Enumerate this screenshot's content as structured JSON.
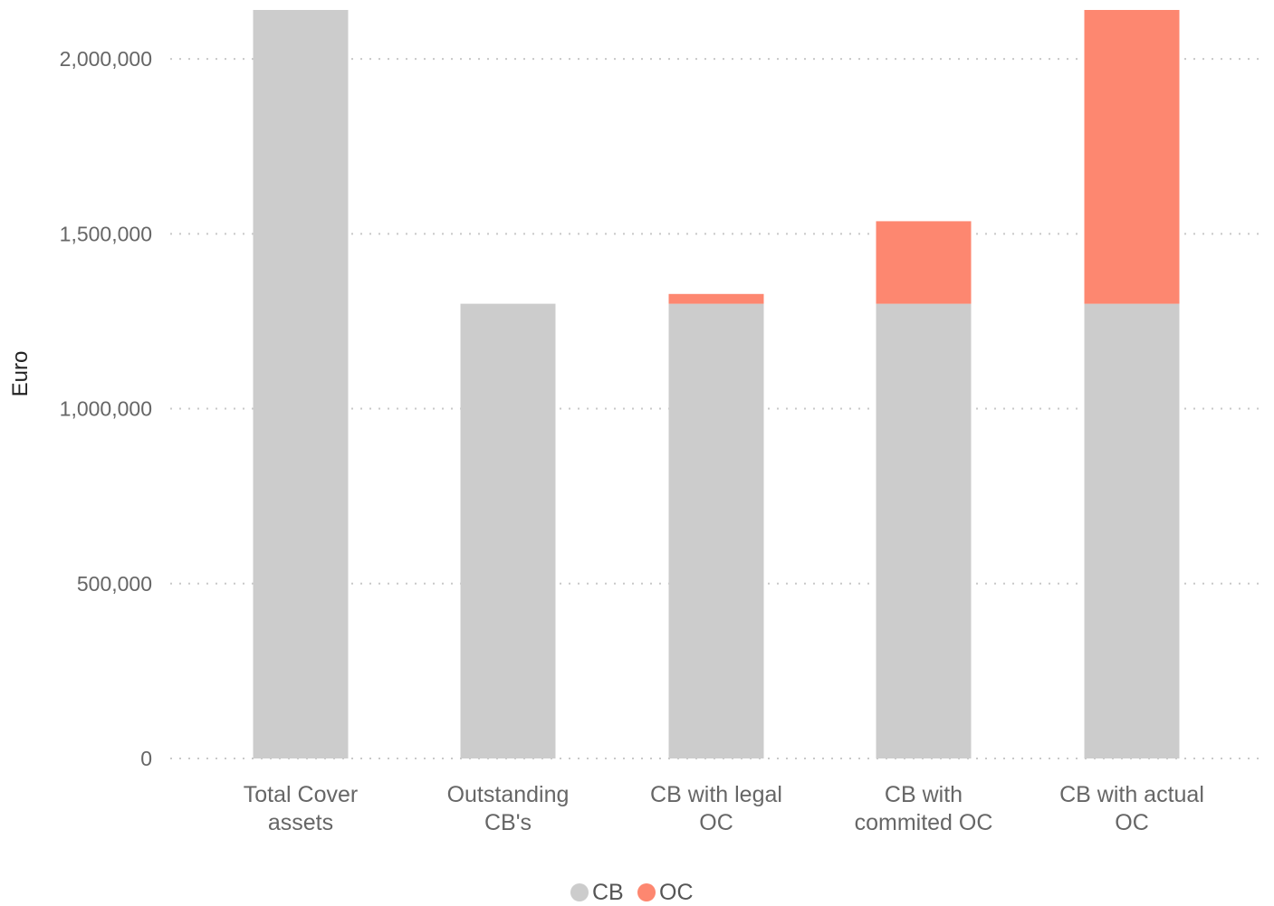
{
  "chart_data": {
    "type": "bar",
    "stacked": true,
    "ylabel": "Euro",
    "xlabel": "",
    "ylim": [
      0,
      2140000
    ],
    "yticks": [
      0,
      500000,
      1000000,
      1500000,
      2000000
    ],
    "ytick_labels": [
      "0",
      "500,000",
      "1,000,000",
      "1,500,000",
      "2,000,000"
    ],
    "categories": [
      [
        "Total Cover",
        "assets"
      ],
      [
        "Outstanding",
        "CB's"
      ],
      [
        "CB with legal",
        "OC"
      ],
      [
        "CB with",
        "commited OC"
      ],
      [
        "CB with actual",
        "OC"
      ]
    ],
    "series": [
      {
        "name": "CB",
        "color": "#cccccc",
        "values": [
          2140000,
          1300000,
          1300000,
          1300000,
          1300000
        ]
      },
      {
        "name": "OC",
        "color": "#fd8770",
        "values": [
          0,
          0,
          28000,
          236000,
          840000
        ]
      }
    ],
    "grid": "horizontal-dotted",
    "legend": "bottom-center"
  }
}
